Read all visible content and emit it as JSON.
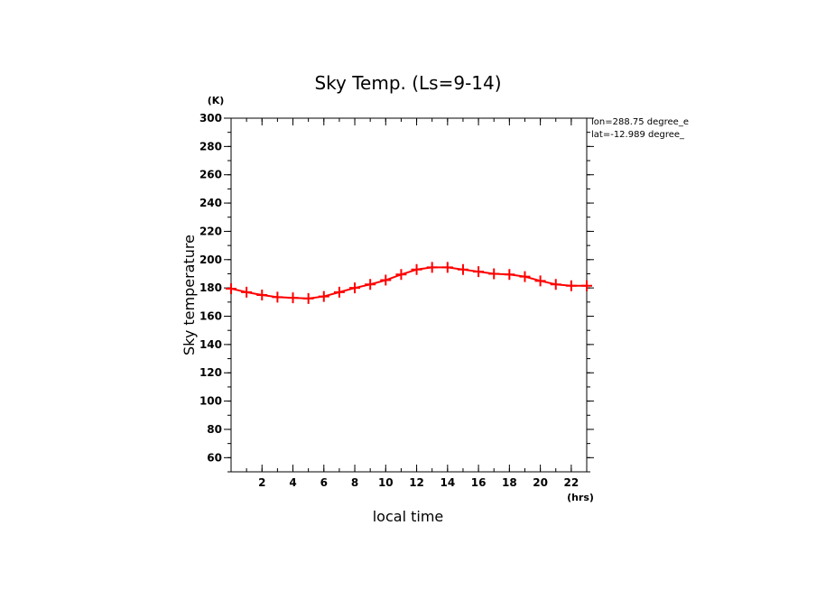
{
  "chart_data": {
    "type": "line",
    "title": "Sky Temp. (Ls=9-14)",
    "xlabel": "local time",
    "ylabel": "Sky temperature",
    "x_unit": "(hrs)",
    "y_unit": "(K)",
    "xlim": [
      0,
      23
    ],
    "ylim": [
      50,
      300
    ],
    "x_ticks": [
      2,
      4,
      6,
      8,
      10,
      12,
      14,
      16,
      18,
      20,
      22
    ],
    "y_ticks": [
      60,
      80,
      100,
      120,
      140,
      160,
      180,
      200,
      220,
      240,
      260,
      280,
      300
    ],
    "grid": false,
    "annotations": [
      "lon=288.75 degree_e",
      "lat=-12.989 degree_"
    ],
    "series": [
      {
        "color": "#ff0000",
        "marker": "plus",
        "x": [
          0,
          1,
          2,
          3,
          4,
          5,
          6,
          7,
          8,
          9,
          10,
          11,
          12,
          13,
          14,
          15,
          16,
          17,
          18,
          19,
          20,
          21,
          22,
          23
        ],
        "values": [
          179.5,
          177.0,
          175.0,
          173.5,
          173.0,
          172.5,
          174.0,
          177.0,
          180.0,
          182.5,
          185.5,
          189.5,
          193.0,
          194.5,
          194.5,
          193.0,
          191.5,
          190.0,
          189.5,
          188.0,
          185.0,
          182.5,
          181.5,
          181.5
        ]
      }
    ]
  }
}
